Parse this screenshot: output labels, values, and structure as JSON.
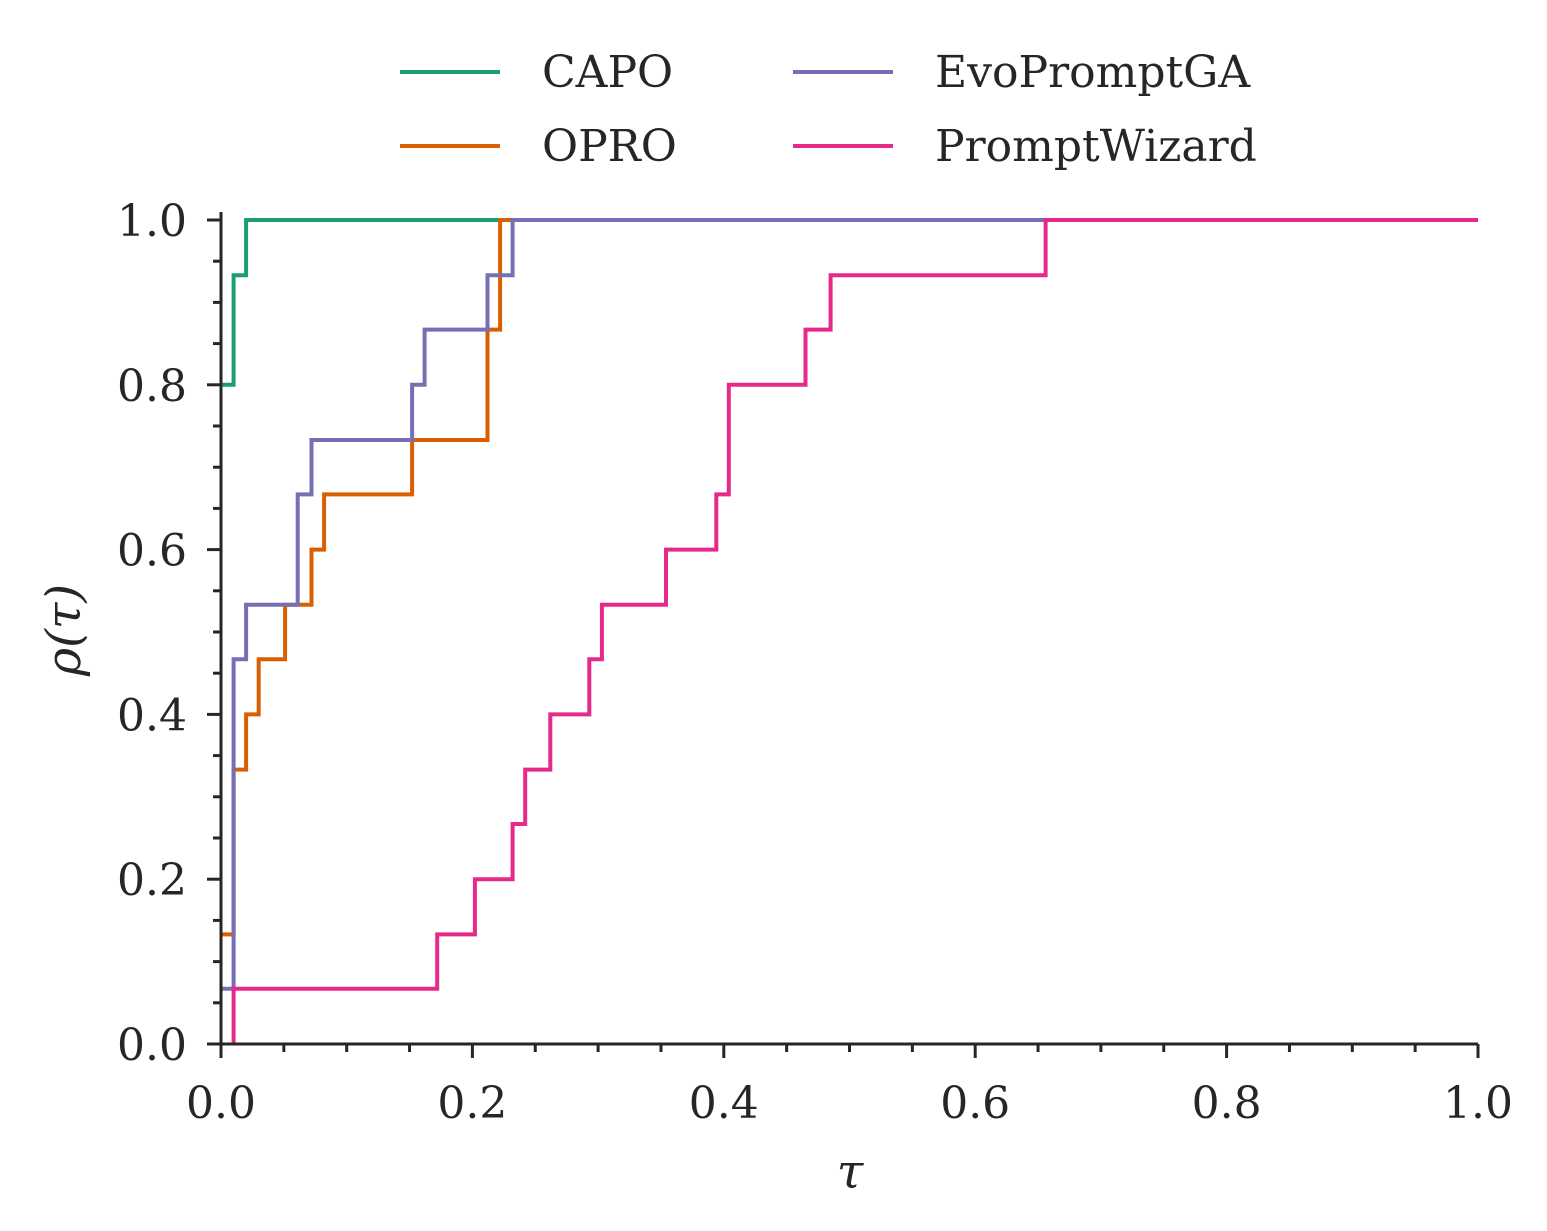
{
  "chart_data": {
    "type": "line",
    "step": "post",
    "xlabel": "τ",
    "ylabel": "ρ(τ)",
    "xlim": [
      0,
      1
    ],
    "ylim": [
      0,
      1
    ],
    "x_ticks": [
      "0.0",
      "0.2",
      "0.4",
      "0.6",
      "0.8",
      "1.0"
    ],
    "y_ticks": [
      "0.0",
      "0.2",
      "0.4",
      "0.6",
      "0.8",
      "1.0"
    ],
    "legend_position": "top-center",
    "series": [
      {
        "name": "CAPO",
        "color": "#1b9e77",
        "points": [
          [
            0,
            0.8
          ],
          [
            0.01,
            0.8
          ],
          [
            0.01,
            0.933
          ],
          [
            0.02,
            0.933
          ],
          [
            0.02,
            1.0
          ],
          [
            0.227,
            1.0
          ]
        ]
      },
      {
        "name": "OPRO",
        "color": "#d95f02",
        "points": [
          [
            0,
            0.133
          ],
          [
            0.01,
            0.133
          ],
          [
            0.01,
            0.333
          ],
          [
            0.02,
            0.333
          ],
          [
            0.02,
            0.4
          ],
          [
            0.03,
            0.4
          ],
          [
            0.03,
            0.467
          ],
          [
            0.051,
            0.467
          ],
          [
            0.051,
            0.533
          ],
          [
            0.072,
            0.533
          ],
          [
            0.072,
            0.6
          ],
          [
            0.082,
            0.6
          ],
          [
            0.082,
            0.667
          ],
          [
            0.152,
            0.667
          ],
          [
            0.152,
            0.733
          ],
          [
            0.212,
            0.733
          ],
          [
            0.212,
            0.867
          ],
          [
            0.222,
            0.867
          ],
          [
            0.222,
            1.0
          ],
          [
            0.232,
            1.0
          ]
        ]
      },
      {
        "name": "EvoPromptGA",
        "color": "#7570b3",
        "points": [
          [
            0,
            0.067
          ],
          [
            0.01,
            0.067
          ],
          [
            0.01,
            0.467
          ],
          [
            0.02,
            0.467
          ],
          [
            0.02,
            0.533
          ],
          [
            0.061,
            0.533
          ],
          [
            0.061,
            0.667
          ],
          [
            0.072,
            0.667
          ],
          [
            0.072,
            0.733
          ],
          [
            0.152,
            0.733
          ],
          [
            0.152,
            0.8
          ],
          [
            0.162,
            0.8
          ],
          [
            0.162,
            0.867
          ],
          [
            0.212,
            0.867
          ],
          [
            0.212,
            0.933
          ],
          [
            0.232,
            0.933
          ],
          [
            0.232,
            1.0
          ],
          [
            0.656,
            1.0
          ]
        ]
      },
      {
        "name": "PromptWizard",
        "color": "#e7298a",
        "points": [
          [
            0.01,
            0.0
          ],
          [
            0.01,
            0.067
          ],
          [
            0.172,
            0.067
          ],
          [
            0.172,
            0.133
          ],
          [
            0.202,
            0.133
          ],
          [
            0.202,
            0.2
          ],
          [
            0.232,
            0.2
          ],
          [
            0.232,
            0.267
          ],
          [
            0.242,
            0.267
          ],
          [
            0.242,
            0.333
          ],
          [
            0.262,
            0.333
          ],
          [
            0.262,
            0.4
          ],
          [
            0.293,
            0.4
          ],
          [
            0.293,
            0.467
          ],
          [
            0.303,
            0.467
          ],
          [
            0.303,
            0.533
          ],
          [
            0.354,
            0.533
          ],
          [
            0.354,
            0.6
          ],
          [
            0.394,
            0.6
          ],
          [
            0.394,
            0.667
          ],
          [
            0.404,
            0.667
          ],
          [
            0.404,
            0.8
          ],
          [
            0.465,
            0.8
          ],
          [
            0.465,
            0.867
          ],
          [
            0.485,
            0.867
          ],
          [
            0.485,
            0.933
          ],
          [
            0.656,
            0.933
          ],
          [
            0.656,
            1.0
          ],
          [
            1.0,
            1.0
          ]
        ]
      }
    ]
  }
}
